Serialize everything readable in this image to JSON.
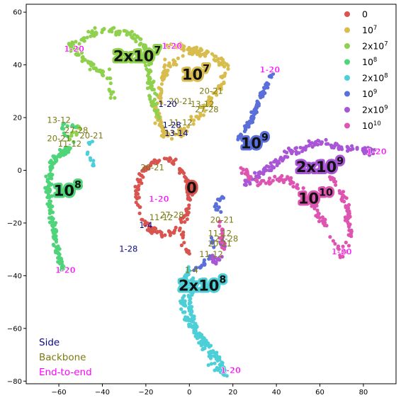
{
  "chart_data": {
    "type": "scatter",
    "title": "",
    "xlabel": "",
    "ylabel": "",
    "xlim": [
      -75,
      95
    ],
    "ylim": [
      -81,
      63
    ],
    "xticks": [
      -60,
      -40,
      -20,
      0,
      20,
      40,
      60,
      80
    ],
    "yticks": [
      -80,
      -60,
      -40,
      -20,
      0,
      20,
      40,
      60
    ],
    "grid": false,
    "legend": {
      "position": "top-right"
    },
    "series": [
      {
        "name": "0",
        "color": "#d9534f",
        "clusters": [
          {
            "type": "loop",
            "cx": -12,
            "cy": -10,
            "rx": 12,
            "ry": 14,
            "n": 150
          },
          {
            "type": "curve",
            "pts": [
              [
                -4,
                -22
              ],
              [
                -2,
                -28
              ],
              [
                0,
                -32
              ]
            ],
            "n": 15
          }
        ]
      },
      {
        "name": "10^7",
        "color": "#d8bd4e",
        "clusters": [
          {
            "type": "curve",
            "pts": [
              [
                -10,
                40
              ],
              [
                0,
                45
              ],
              [
                8,
                45
              ],
              [
                17,
                40
              ],
              [
                15,
                32
              ],
              [
                10,
                27
              ],
              [
                5,
                22
              ],
              [
                0,
                17
              ],
              [
                -6,
                12
              ],
              [
                -12,
                14
              ],
              [
                -15,
                22
              ],
              [
                -13,
                32
              ],
              [
                -10,
                40
              ]
            ],
            "n": 200,
            "w": 1.8
          },
          {
            "type": "curve",
            "pts": [
              [
                -12,
                47
              ],
              [
                -4,
                47
              ],
              [
                5,
                45
              ]
            ],
            "n": 30
          }
        ]
      },
      {
        "name": "2x10^7",
        "color": "#8fd04d",
        "clusters": [
          {
            "type": "curve",
            "pts": [
              [
                -37,
                35
              ],
              [
                -50,
                43
              ],
              [
                -55,
                48
              ],
              [
                -45,
                52
              ],
              [
                -35,
                53
              ],
              [
                -25,
                51
              ],
              [
                -20,
                45
              ],
              [
                -18,
                35
              ],
              [
                -16,
                25
              ],
              [
                -15,
                20
              ]
            ],
            "n": 190,
            "w": 1.8
          },
          {
            "type": "curve",
            "pts": [
              [
                -37,
                38
              ],
              [
                -36,
                32
              ],
              [
                -35,
                28
              ]
            ],
            "n": 10
          },
          {
            "type": "curve",
            "pts": [
              [
                -55,
                12
              ],
              [
                -50,
                18
              ],
              [
                -52,
                14
              ]
            ],
            "n": 15
          }
        ]
      },
      {
        "name": "10^8",
        "color": "#4fd47a",
        "clusters": [
          {
            "type": "curve",
            "pts": [
              [
                -55,
                8
              ],
              [
                -62,
                5
              ],
              [
                -65,
                -5
              ],
              [
                -64,
                -15
              ],
              [
                -62,
                -25
              ],
              [
                -60,
                -32
              ],
              [
                -58,
                -38
              ]
            ],
            "n": 160,
            "w": 1.6
          },
          {
            "type": "curve",
            "pts": [
              [
                -53,
                17
              ],
              [
                -58,
                18
              ],
              [
                -58,
                14
              ],
              [
                -52,
                10
              ]
            ],
            "n": 15
          }
        ]
      },
      {
        "name": "2x10^8",
        "color": "#4ccfd6",
        "clusters": [
          {
            "type": "curve",
            "pts": [
              [
                -45,
                12
              ],
              [
                -46,
                6
              ],
              [
                -44,
                2
              ]
            ],
            "n": 12
          },
          {
            "type": "curve",
            "pts": [
              [
                0,
                -37
              ],
              [
                -4,
                -45
              ],
              [
                -2,
                -55
              ],
              [
                5,
                -63
              ],
              [
                12,
                -70
              ],
              [
                17,
                -77
              ],
              [
                12,
                -75
              ],
              [
                5,
                -65
              ],
              [
                1,
                -55
              ],
              [
                0,
                -45
              ],
              [
                2,
                -40
              ]
            ],
            "n": 220,
            "w": 1.4
          }
        ]
      },
      {
        "name": "10^9",
        "color": "#5a6fd9",
        "clusters": [
          {
            "type": "curve",
            "pts": [
              [
                38,
                37
              ],
              [
                34,
                30
              ],
              [
                30,
                22
              ],
              [
                26,
                16
              ],
              [
                22,
                12
              ]
            ],
            "n": 90,
            "w": 1.2
          },
          {
            "type": "curve",
            "pts": [
              [
                15,
                -10
              ],
              [
                12,
                -13
              ],
              [
                14,
                -16
              ]
            ],
            "n": 15
          },
          {
            "type": "curve",
            "pts": [
              [
                10,
                -25
              ],
              [
                12,
                -30
              ],
              [
                6,
                -36
              ],
              [
                2,
                -38
              ]
            ],
            "n": 20
          }
        ]
      },
      {
        "name": "2x10^9",
        "color": "#a855d6",
        "clusters": [
          {
            "type": "curve",
            "pts": [
              [
                25,
                -5
              ],
              [
                35,
                0
              ],
              [
                45,
                6
              ],
              [
                55,
                10
              ],
              [
                65,
                10
              ],
              [
                75,
                8
              ],
              [
                85,
                7
              ]
            ],
            "n": 140,
            "w": 1.8
          },
          {
            "type": "curve",
            "pts": [
              [
                14,
                -25
              ],
              [
                16,
                -30
              ],
              [
                12,
                -35
              ],
              [
                10,
                -32
              ]
            ],
            "n": 20
          }
        ]
      },
      {
        "name": "10^10",
        "color": "#dd55b0",
        "clusters": [
          {
            "type": "curve",
            "pts": [
              [
                25,
                0
              ],
              [
                30,
                -5
              ],
              [
                45,
                -3
              ],
              [
                55,
                -10
              ],
              [
                62,
                -20
              ],
              [
                66,
                -27
              ],
              [
                70,
                -32
              ],
              [
                74,
                -25
              ],
              [
                72,
                -12
              ],
              [
                65,
                -2
              ]
            ],
            "n": 170,
            "w": 1.5
          },
          {
            "type": "curve",
            "pts": [
              [
                14,
                -20
              ],
              [
                15,
                -25
              ],
              [
                16,
                -30
              ]
            ],
            "n": 15
          }
        ]
      }
    ],
    "cluster_labels": [
      {
        "text": "0",
        "x": 1,
        "y": -7,
        "color": "#d9534f"
      },
      {
        "text": "10^7",
        "x": 3,
        "y": 36,
        "color": "#d8bd4e"
      },
      {
        "text": "2x10^7",
        "x": -24,
        "y": 43,
        "color": "#8fd04d"
      },
      {
        "text": "10^8",
        "x": -56,
        "y": -8,
        "color": "#4fd47a"
      },
      {
        "text": "2x10^8",
        "x": 6,
        "y": -44,
        "color": "#4ccfd6"
      },
      {
        "text": "10^9",
        "x": 30,
        "y": 10,
        "color": "#5a6fd9"
      },
      {
        "text": "2x10^9",
        "x": 60,
        "y": 1,
        "color": "#a855d6"
      },
      {
        "text": "10^10",
        "x": 58,
        "y": -11,
        "color": "#dd55b0"
      }
    ],
    "annotations": [
      {
        "text": "20-21",
        "x": 10,
        "y": 30,
        "type": "backbone"
      },
      {
        "text": "20-21",
        "x": -4,
        "y": 26,
        "type": "backbone"
      },
      {
        "text": "13-12",
        "x": 6,
        "y": 25,
        "type": "backbone"
      },
      {
        "text": "27-28",
        "x": 8,
        "y": 23,
        "type": "backbone"
      },
      {
        "text": "11-12",
        "x": -4,
        "y": 18,
        "type": "backbone"
      },
      {
        "text": "20-21",
        "x": -60,
        "y": 12,
        "type": "backbone"
      },
      {
        "text": "11-12",
        "x": -55,
        "y": 10,
        "type": "backbone"
      },
      {
        "text": "13-12",
        "x": -60,
        "y": 19,
        "type": "backbone"
      },
      {
        "text": "27-28",
        "x": -52,
        "y": 15,
        "type": "backbone"
      },
      {
        "text": "20-21",
        "x": -45,
        "y": 13,
        "type": "backbone"
      },
      {
        "text": "20-21",
        "x": -17,
        "y": 1,
        "type": "backbone"
      },
      {
        "text": "11-12",
        "x": -13,
        "y": -18,
        "type": "backbone"
      },
      {
        "text": "27-28",
        "x": -8,
        "y": -17,
        "type": "backbone"
      },
      {
        "text": "20-21",
        "x": 15,
        "y": -19,
        "type": "backbone"
      },
      {
        "text": "27-28",
        "x": 17,
        "y": -26,
        "type": "backbone"
      },
      {
        "text": "11-12",
        "x": 14,
        "y": -24,
        "type": "backbone"
      },
      {
        "text": "20-21",
        "x": 14,
        "y": -28,
        "type": "backbone"
      },
      {
        "text": "1-4",
        "x": 1,
        "y": -38,
        "type": "backbone"
      },
      {
        "text": "11-12",
        "x": 10,
        "y": -32,
        "type": "backbone"
      },
      {
        "text": "1-20",
        "x": -10,
        "y": 25,
        "type": "side"
      },
      {
        "text": "1-28",
        "x": -8,
        "y": 17,
        "type": "side"
      },
      {
        "text": "13-14",
        "x": -6,
        "y": 14,
        "type": "side"
      },
      {
        "text": "1-4",
        "x": -20,
        "y": -21,
        "type": "side"
      },
      {
        "text": "1-28",
        "x": -28,
        "y": -30,
        "type": "side"
      },
      {
        "text": "1-20",
        "x": -53,
        "y": 46,
        "type": "endtoend"
      },
      {
        "text": "1-20",
        "x": -8,
        "y": 47,
        "type": "endtoend"
      },
      {
        "text": "1-20",
        "x": 37,
        "y": 38,
        "type": "endtoend"
      },
      {
        "text": "1-20",
        "x": -57,
        "y": -38,
        "type": "endtoend"
      },
      {
        "text": "1-20",
        "x": -14,
        "y": -11,
        "type": "endtoend"
      },
      {
        "text": "1-20",
        "x": 86,
        "y": 7,
        "type": "endtoend"
      },
      {
        "text": "1-20",
        "x": 70,
        "y": -31,
        "type": "endtoend"
      },
      {
        "text": "1-20",
        "x": 19,
        "y": -76,
        "type": "endtoend"
      }
    ],
    "annotation_legend": [
      {
        "label": "Side",
        "color": "#0a0a80"
      },
      {
        "label": "Backbone",
        "color": "#7a7a10"
      },
      {
        "label": "End-to-end",
        "color": "#ff00ff"
      }
    ]
  }
}
